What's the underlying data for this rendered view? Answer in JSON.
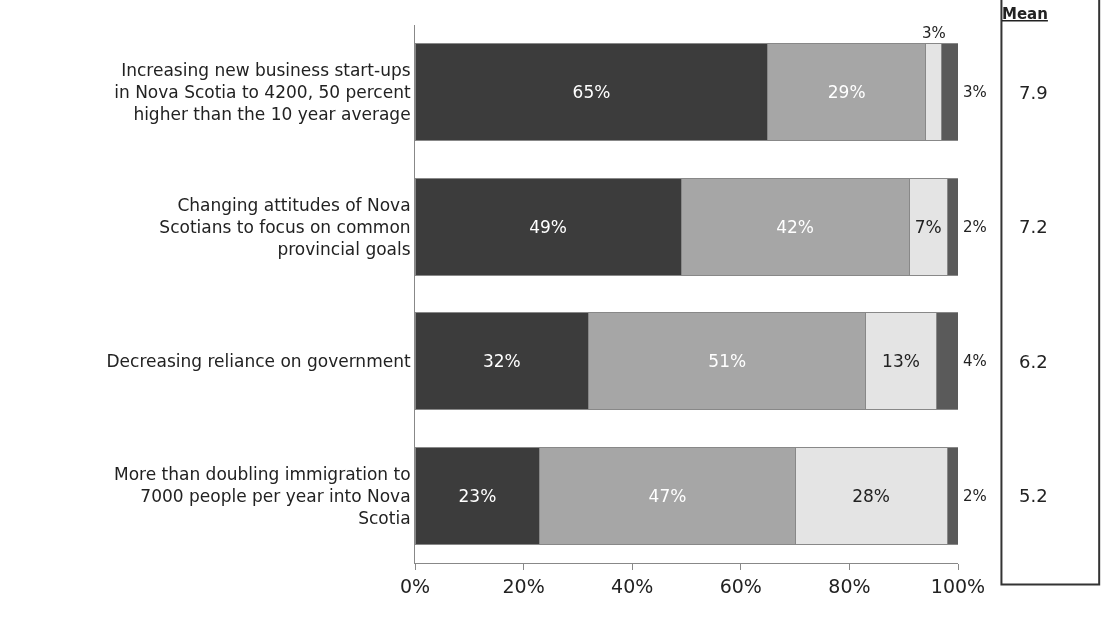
{
  "chart_data": {
    "type": "bar",
    "orientation": "horizontal",
    "stacked": true,
    "categories": [
      "Increasing new business start-ups in Nova Scotia to 4200, 50 percent higher than the 10 year average",
      "Changing attitudes of Nova Scotians to focus on common provincial goals",
      "Decreasing reliance on government",
      "More than doubling immigration to 7000 people per year into Nova Scotia"
    ],
    "series": [
      {
        "color": "#3c3c3c",
        "values": [
          65,
          49,
          32,
          23
        ],
        "value_labels": [
          "65%",
          "49%",
          "32%",
          "23%"
        ]
      },
      {
        "color": "#a6a6a6",
        "values": [
          29,
          42,
          51,
          47
        ],
        "value_labels": [
          "29%",
          "42%",
          "51%",
          "47%"
        ]
      },
      {
        "color": "#e4e4e4",
        "values": [
          3,
          7,
          13,
          28
        ],
        "value_labels": [
          "3%",
          "7%",
          "13%",
          "28%"
        ]
      },
      {
        "color": "#5a5a5a",
        "values": [
          3,
          2,
          4,
          2
        ],
        "value_labels": [
          "3%",
          "2%",
          "4%",
          "2%"
        ]
      }
    ],
    "xlim": [
      0,
      100
    ],
    "xticks": [
      {
        "value": 0,
        "label": "0%"
      },
      {
        "value": 20,
        "label": "20%"
      },
      {
        "value": 40,
        "label": "40%"
      },
      {
        "value": 60,
        "label": "60%"
      },
      {
        "value": 80,
        "label": "80%"
      },
      {
        "value": 100,
        "label": "100%"
      }
    ],
    "annotations": [
      "Mean",
      "7.9",
      "7.2",
      "6.2",
      "5.2"
    ]
  }
}
